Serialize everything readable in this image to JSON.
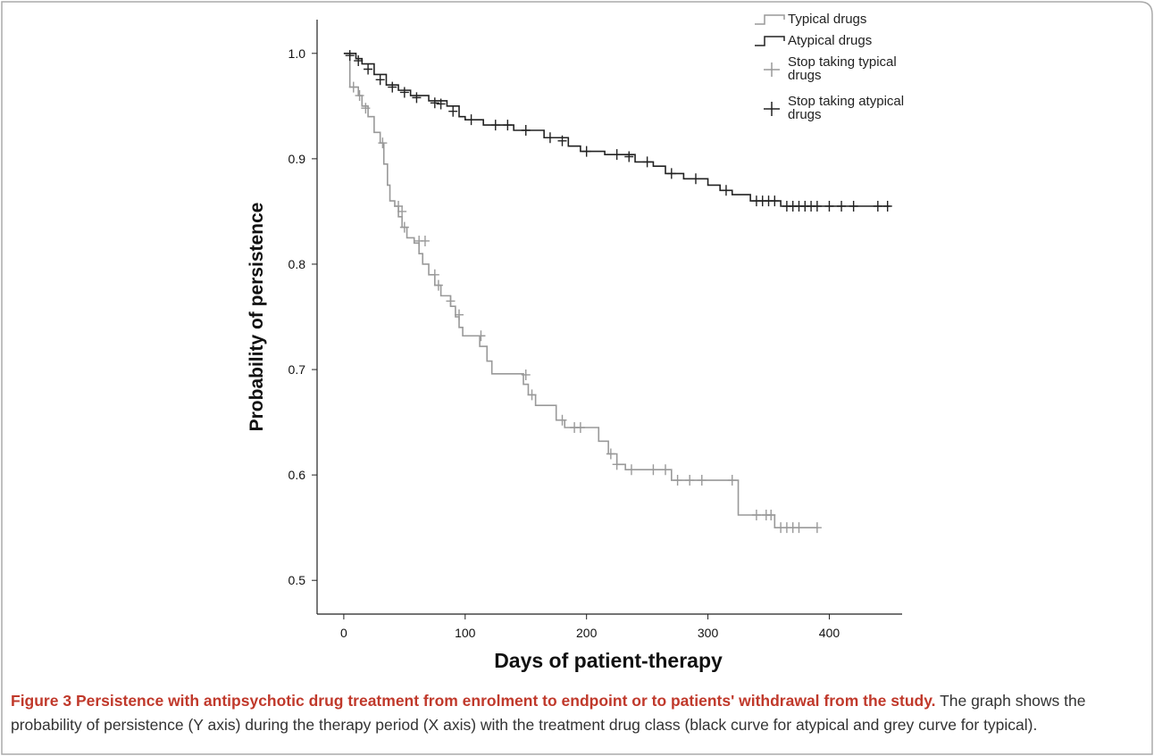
{
  "chart_data": {
    "type": "step",
    "xlabel": "Days of patient-therapy",
    "ylabel": "Probability of persistence",
    "xlim": [
      -22,
      460
    ],
    "ylim": [
      0.468,
      1.032
    ],
    "xticks": [
      0,
      100,
      200,
      300,
      400
    ],
    "yticks": [
      0.5,
      0.6,
      0.7,
      0.8,
      0.9,
      {
        "value": 1,
        "label": "1.0"
      }
    ],
    "series": [
      {
        "name": "Typical drugs",
        "kind": "step",
        "color": "#999999",
        "x": [
          0,
          5,
          12,
          15,
          20,
          25,
          30,
          33,
          36,
          38,
          42,
          45,
          48,
          52,
          58,
          62,
          65,
          70,
          75,
          80,
          88,
          92,
          95,
          98,
          112,
          118,
          122,
          148,
          152,
          158,
          175,
          182,
          210,
          218,
          225,
          232,
          270,
          325,
          355,
          390
        ],
        "values": [
          1.0,
          0.968,
          0.96,
          0.95,
          0.94,
          0.925,
          0.915,
          0.895,
          0.875,
          0.86,
          0.855,
          0.845,
          0.835,
          0.825,
          0.82,
          0.81,
          0.8,
          0.79,
          0.78,
          0.77,
          0.76,
          0.75,
          0.74,
          0.732,
          0.722,
          0.708,
          0.696,
          0.686,
          0.676,
          0.666,
          0.652,
          0.645,
          0.632,
          0.62,
          0.61,
          0.605,
          0.595,
          0.562,
          0.55,
          0.55
        ]
      },
      {
        "name": "Atypical drugs",
        "kind": "step",
        "color": "#222222",
        "x": [
          0,
          10,
          15,
          25,
          35,
          45,
          55,
          70,
          85,
          95,
          100,
          115,
          140,
          165,
          185,
          195,
          215,
          240,
          255,
          265,
          280,
          300,
          310,
          320,
          335,
          360,
          450
        ],
        "values": [
          1.0,
          0.995,
          0.99,
          0.98,
          0.97,
          0.965,
          0.96,
          0.955,
          0.95,
          0.94,
          0.937,
          0.932,
          0.927,
          0.92,
          0.912,
          0.907,
          0.904,
          0.897,
          0.893,
          0.886,
          0.881,
          0.875,
          0.87,
          0.866,
          0.86,
          0.855,
          0.855
        ]
      },
      {
        "name": "Stop taking typical drugs",
        "kind": "censor",
        "color": "#999999",
        "x": [
          8,
          13,
          18,
          32,
          45,
          48,
          50,
          62,
          67,
          75,
          78,
          88,
          95,
          113,
          150,
          155,
          180,
          190,
          195,
          220,
          225,
          237,
          255,
          265,
          275,
          285,
          295,
          320,
          340,
          348,
          352,
          360,
          365,
          370,
          375,
          390
        ],
        "values": [
          0.968,
          0.96,
          0.948,
          0.915,
          0.855,
          0.85,
          0.835,
          0.822,
          0.822,
          0.79,
          0.78,
          0.765,
          0.752,
          0.732,
          0.695,
          0.676,
          0.652,
          0.645,
          0.645,
          0.62,
          0.61,
          0.605,
          0.605,
          0.605,
          0.595,
          0.595,
          0.595,
          0.595,
          0.562,
          0.562,
          0.562,
          0.55,
          0.55,
          0.55,
          0.55,
          0.55
        ]
      },
      {
        "name": "Stop taking atypical drugs",
        "kind": "censor",
        "color": "#222222",
        "x": [
          5,
          12,
          20,
          30,
          40,
          50,
          60,
          75,
          80,
          90,
          105,
          125,
          135,
          150,
          170,
          180,
          200,
          225,
          235,
          250,
          270,
          290,
          315,
          340,
          345,
          350,
          355,
          365,
          370,
          375,
          380,
          385,
          390,
          400,
          410,
          420,
          440,
          448
        ],
        "values": [
          0.998,
          0.993,
          0.985,
          0.975,
          0.968,
          0.963,
          0.958,
          0.953,
          0.952,
          0.945,
          0.937,
          0.932,
          0.932,
          0.927,
          0.92,
          0.917,
          0.907,
          0.904,
          0.902,
          0.897,
          0.886,
          0.881,
          0.87,
          0.86,
          0.86,
          0.86,
          0.86,
          0.855,
          0.855,
          0.855,
          0.855,
          0.855,
          0.855,
          0.855,
          0.855,
          0.855,
          0.855,
          0.855
        ]
      }
    ]
  },
  "caption": {
    "label": "Figure 3",
    "title": "Persistence with antipsychotic drug treatment from enrolment to endpoint or to patients' withdrawal from the study.",
    "text": "The graph shows the probability of persistence (Y axis) during the therapy period (X axis) with the treatment drug class (black curve for atypical and grey curve for typical)."
  }
}
